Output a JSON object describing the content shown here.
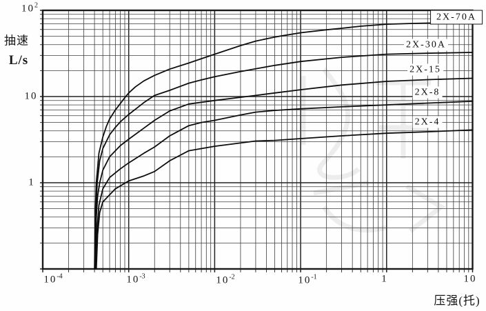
{
  "chart": {
    "y_axis_title_line1": "抽速",
    "y_axis_title_line2": "L/s",
    "x_axis_title": "压强(托)",
    "y_tick_labels": [
      {
        "base": "10",
        "exp": "2",
        "value": 100
      },
      {
        "base": "10",
        "exp": "",
        "value": 10
      },
      {
        "base": "1",
        "exp": "",
        "value": 1
      }
    ],
    "x_tick_labels": [
      {
        "base": "10",
        "exp": "-4",
        "value": 0.0001
      },
      {
        "base": "10",
        "exp": "-3",
        "value": 0.001
      },
      {
        "base": "10",
        "exp": "-2",
        "value": 0.01
      },
      {
        "base": "10",
        "exp": "-1",
        "value": 0.1
      },
      {
        "base": "1",
        "exp": "",
        "value": 1
      },
      {
        "base": "10",
        "exp": "",
        "value": 10
      }
    ]
  },
  "curve_labels": [
    {
      "text": "2X-70A",
      "boxed": true
    },
    {
      "text": "2X-30A",
      "boxed": false
    },
    {
      "text": "2X-15",
      "boxed": false
    },
    {
      "text": "2X-8",
      "boxed": false
    },
    {
      "text": "2X-4",
      "boxed": false
    }
  ],
  "chart_data": {
    "type": "line",
    "title": "",
    "xlabel": "压强(托)",
    "ylabel": "抽速 L/s",
    "x_scale": "log",
    "y_scale": "log",
    "xlim": [
      0.0001,
      10
    ],
    "ylim": [
      0.1,
      100
    ],
    "grid": "full log-log grid, minor lines 2-9 each decade, both axes",
    "legend_position": "labels beside curves at right",
    "series": [
      {
        "name": "2X-70A",
        "points": [
          [
            0.0004,
            0.1
          ],
          [
            0.00041,
            0.5
          ],
          [
            0.00042,
            1.0
          ],
          [
            0.00045,
            2.2
          ],
          [
            0.0005,
            3.4
          ],
          [
            0.00055,
            4.5
          ],
          [
            0.0006,
            5.5
          ],
          [
            0.0007,
            7.0
          ],
          [
            0.0008,
            8.3
          ],
          [
            0.0009,
            9.7
          ],
          [
            0.001,
            11
          ],
          [
            0.0012,
            13
          ],
          [
            0.0015,
            15.2
          ],
          [
            0.002,
            17.6
          ],
          [
            0.003,
            20.8
          ],
          [
            0.005,
            24.5
          ],
          [
            0.007,
            27.5
          ],
          [
            0.01,
            31
          ],
          [
            0.02,
            39
          ],
          [
            0.03,
            44
          ],
          [
            0.05,
            49
          ],
          [
            0.1,
            55
          ],
          [
            0.2,
            59.5
          ],
          [
            0.3,
            62
          ],
          [
            0.5,
            65.5
          ],
          [
            1,
            69
          ],
          [
            2,
            70.5
          ],
          [
            5,
            72
          ],
          [
            10,
            73.5
          ]
        ]
      },
      {
        "name": "2X-30A",
        "points": [
          [
            0.000405,
            0.1
          ],
          [
            0.000415,
            0.5
          ],
          [
            0.00043,
            1.0
          ],
          [
            0.00046,
            1.8
          ],
          [
            0.0005,
            2.5
          ],
          [
            0.0006,
            3.6
          ],
          [
            0.0007,
            4.4
          ],
          [
            0.0008,
            5.1
          ],
          [
            0.001,
            6.2
          ],
          [
            0.0015,
            8.5
          ],
          [
            0.002,
            10.3
          ],
          [
            0.003,
            11.8
          ],
          [
            0.005,
            14.3
          ],
          [
            0.007,
            15.6
          ],
          [
            0.01,
            17
          ],
          [
            0.02,
            19.5
          ],
          [
            0.03,
            21
          ],
          [
            0.05,
            23
          ],
          [
            0.1,
            25.5
          ],
          [
            0.3,
            28.5
          ],
          [
            1,
            31
          ],
          [
            3,
            31.8
          ],
          [
            10,
            32.5
          ]
        ]
      },
      {
        "name": "2X-15",
        "points": [
          [
            0.00041,
            0.1
          ],
          [
            0.00042,
            0.4
          ],
          [
            0.000435,
            0.7
          ],
          [
            0.00046,
            1.0
          ],
          [
            0.0005,
            1.4
          ],
          [
            0.0006,
            2.0
          ],
          [
            0.0008,
            2.7
          ],
          [
            0.001,
            3.2
          ],
          [
            0.0015,
            4.3
          ],
          [
            0.002,
            5.3
          ],
          [
            0.003,
            6.8
          ],
          [
            0.005,
            8.2
          ],
          [
            0.01,
            9.0
          ],
          [
            0.02,
            9.8
          ],
          [
            0.03,
            10.3
          ],
          [
            0.05,
            11
          ],
          [
            0.1,
            12
          ],
          [
            0.3,
            13.6
          ],
          [
            1,
            15
          ],
          [
            3,
            15.7
          ],
          [
            10,
            16.3
          ]
        ]
      },
      {
        "name": "2X-8",
        "points": [
          [
            0.000415,
            0.1
          ],
          [
            0.00043,
            0.3
          ],
          [
            0.00045,
            0.55
          ],
          [
            0.0005,
            0.85
          ],
          [
            0.0006,
            1.15
          ],
          [
            0.0008,
            1.45
          ],
          [
            0.001,
            1.7
          ],
          [
            0.0015,
            2.2
          ],
          [
            0.002,
            2.6
          ],
          [
            0.003,
            3.5
          ],
          [
            0.005,
            4.6
          ],
          [
            0.007,
            5.0
          ],
          [
            0.01,
            5.3
          ],
          [
            0.02,
            6.1
          ],
          [
            0.03,
            6.6
          ],
          [
            0.05,
            6.9
          ],
          [
            0.1,
            7.2
          ],
          [
            0.3,
            7.6
          ],
          [
            1,
            8.0
          ],
          [
            3,
            8.4
          ],
          [
            10,
            8.8
          ]
        ]
      },
      {
        "name": "2X-4",
        "points": [
          [
            0.00042,
            0.1
          ],
          [
            0.000435,
            0.25
          ],
          [
            0.00046,
            0.45
          ],
          [
            0.0005,
            0.6
          ],
          [
            0.0007,
            0.85
          ],
          [
            0.001,
            1.05
          ],
          [
            0.0015,
            1.2
          ],
          [
            0.002,
            1.35
          ],
          [
            0.003,
            1.8
          ],
          [
            0.005,
            2.35
          ],
          [
            0.01,
            2.65
          ],
          [
            0.03,
            3.05
          ],
          [
            0.05,
            3.1
          ],
          [
            0.1,
            3.25
          ],
          [
            0.3,
            3.5
          ],
          [
            1,
            3.75
          ],
          [
            3,
            3.9
          ],
          [
            10,
            4.1
          ]
        ]
      }
    ]
  }
}
